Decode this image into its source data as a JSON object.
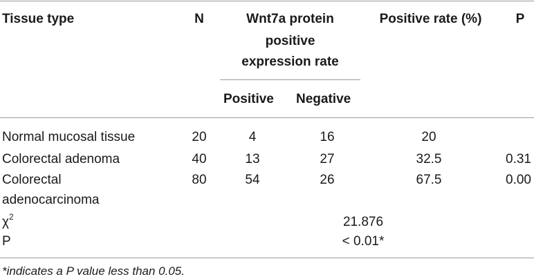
{
  "table": {
    "headers": {
      "tissue_type": "Tissue type",
      "n": "N",
      "wnt7a_line1": "Wnt7a protein",
      "wnt7a_line2": "positive",
      "wnt7a_line3": "expression rate",
      "positive": "Positive",
      "negative": "Negative",
      "positive_rate": "Positive rate (%)",
      "p": "P"
    },
    "rows": [
      {
        "tissue": "Normal mucosal tissue",
        "n": "20",
        "positive": "4",
        "negative": "16",
        "rate": "20",
        "p": ""
      },
      {
        "tissue": "Colorectal adenoma",
        "n": "40",
        "positive": "13",
        "negative": "27",
        "rate": "32.5",
        "p": "0.31"
      },
      {
        "tissue_line1": "Colorectal",
        "tissue_line2": "adenocarcinoma",
        "n": "80",
        "positive": "54",
        "negative": "26",
        "rate": "67.5",
        "p": "0.00"
      }
    ],
    "chi_square": {
      "symbol": "χ",
      "superscript": "2",
      "value": "21.876"
    },
    "p_row": {
      "label": "P",
      "value": "< 0.01*"
    }
  },
  "footnote": "*indicates a P value less than 0.05."
}
